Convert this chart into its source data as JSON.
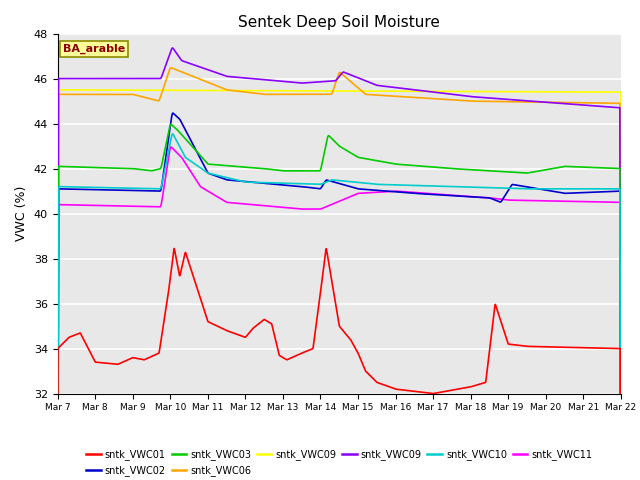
{
  "title": "Sentek Deep Soil Moisture",
  "ylabel": "VWC (%)",
  "ylim": [
    32,
    48
  ],
  "yticks": [
    32,
    34,
    36,
    38,
    40,
    42,
    44,
    46,
    48
  ],
  "annotation": "BA_arable",
  "annotation_color": "#8B0000",
  "annotation_bg": "#FFFF99",
  "annotation_border": "#8B8B00",
  "bg_color": "#E8E8E8",
  "fig_bg": "#FFFFFF",
  "series_colors": {
    "sntk_VWC01": "#FF0000",
    "sntk_VWC02": "#0000CC",
    "sntk_VWC03": "#00CC00",
    "sntk_VWC06": "#FFA500",
    "sntk_VWC09_yellow": "#FFFF00",
    "sntk_VWC09_purple": "#8B00FF",
    "sntk_VWC10": "#00CCCC",
    "sntk_VWC11": "#FF00FF"
  },
  "legend_entries": [
    {
      "label": "sntk_VWC01",
      "color": "#FF0000"
    },
    {
      "label": "sntk_VWC02",
      "color": "#0000CC"
    },
    {
      "label": "sntk_VWC03",
      "color": "#00CC00"
    },
    {
      "label": "sntk_VWC06",
      "color": "#FFA500"
    },
    {
      "label": "sntk_VWC09",
      "color": "#FFFF00"
    },
    {
      "label": "sntk_VWC09",
      "color": "#8B00FF"
    },
    {
      "label": "sntk_VWC10",
      "color": "#00CCCC"
    },
    {
      "label": "sntk_VWC11",
      "color": "#FF00FF"
    }
  ],
  "date_start": 7,
  "date_end": 22,
  "n_points": 3000
}
